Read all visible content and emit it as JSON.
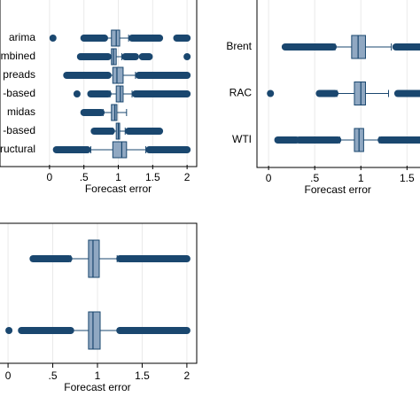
{
  "chart_data": [
    {
      "type": "box",
      "categories": [
        "arima",
        "mbined",
        "preads",
        "-based",
        "midas",
        "-based",
        "ructural"
      ],
      "color": "#1a476f",
      "box_fill": "#90a8c2",
      "grid": true,
      "xlabel": "Forecast error",
      "xlim": [
        -0.72,
        2.14
      ],
      "xticks": [
        0,
        {
          "value": 0.5,
          "label": ".5"
        },
        1,
        1.5,
        2
      ],
      "boxes": [
        {
          "whisker_low": 0.8,
          "q1": 0.9,
          "median": 0.97,
          "q3": 1.02,
          "whisker_high": 1.15,
          "outliers": [
            0.05
          ],
          "outlier_ranges": [
            [
              0.5,
              0.8
            ],
            [
              1.2,
              1.6
            ],
            [
              1.85,
              2.0
            ]
          ]
        },
        {
          "whisker_low": 0.85,
          "q1": 0.9,
          "median": 0.93,
          "q3": 0.97,
          "whisker_high": 1.05,
          "outliers": [
            2.0
          ],
          "outlier_ranges": [
            [
              0.45,
              0.85
            ],
            [
              1.1,
              1.25
            ],
            [
              1.35,
              1.45
            ]
          ]
        },
        {
          "whisker_low": 0.85,
          "q1": 0.92,
          "median": 0.98,
          "q3": 1.07,
          "whisker_high": 1.25,
          "outliers": [],
          "outlier_ranges": [
            [
              0.25,
              0.85
            ],
            [
              1.3,
              2.0
            ]
          ]
        },
        {
          "whisker_low": 0.88,
          "q1": 0.97,
          "median": 1.03,
          "q3": 1.07,
          "whisker_high": 1.2,
          "outliers": [
            0.4
          ],
          "outlier_ranges": [
            [
              0.6,
              0.85
            ],
            [
              1.25,
              2.0
            ]
          ]
        },
        {
          "whisker_low": 0.78,
          "q1": 0.9,
          "median": 0.95,
          "q3": 0.98,
          "whisker_high": 1.12,
          "outliers": [],
          "outlier_ranges": [
            [
              0.5,
              0.75
            ]
          ]
        },
        {
          "whisker_low": 0.92,
          "q1": 0.97,
          "median": 1.0,
          "q3": 1.02,
          "whisker_high": 1.1,
          "outliers": [],
          "outlier_ranges": [
            [
              0.65,
              0.9
            ],
            [
              1.15,
              1.6
            ]
          ]
        },
        {
          "whisker_low": 0.6,
          "q1": 0.92,
          "median": 1.05,
          "q3": 1.12,
          "whisker_high": 1.4,
          "outliers": [],
          "outlier_ranges": [
            [
              0.1,
              0.55
            ],
            [
              1.45,
              2.0
            ]
          ]
        }
      ]
    },
    {
      "type": "box",
      "categories": [
        "Brent",
        "RAC",
        "WTI"
      ],
      "color": "#1a476f",
      "box_fill": "#90a8c2",
      "grid": true,
      "xlabel": "Forecast error",
      "xlim": [
        -0.126,
        1.66
      ],
      "xticks": [
        0,
        {
          "value": 0.5,
          "label": ".5"
        },
        1,
        1.5
      ],
      "boxes": [
        {
          "whisker_low": 0.72,
          "q1": 0.9,
          "median": 0.97,
          "q3": 1.05,
          "whisker_high": 1.33,
          "outliers": [],
          "outlier_ranges": [
            [
              0.18,
              0.7
            ],
            [
              1.38,
              1.7
            ]
          ]
        },
        {
          "whisker_low": 0.74,
          "q1": 0.93,
          "median": 1.0,
          "q3": 1.05,
          "whisker_high": 1.3,
          "outliers": [
            0.02
          ],
          "outlier_ranges": [
            [
              0.55,
              0.72
            ],
            [
              1.4,
              2.0
            ]
          ]
        },
        {
          "whisker_low": 0.77,
          "q1": 0.93,
          "median": 0.98,
          "q3": 1.03,
          "whisker_high": 1.2,
          "outliers": [],
          "outlier_ranges": [
            [
              0.1,
              0.3
            ],
            [
              0.33,
              0.75
            ],
            [
              1.22,
              2.0
            ]
          ]
        }
      ]
    },
    {
      "type": "box",
      "categories": [
        null,
        null
      ],
      "color": "#1a476f",
      "box_fill": "#90a8c2",
      "grid": true,
      "xlabel": "Forecast error",
      "xlim": [
        -0.09,
        2.11
      ],
      "xticks": [
        0,
        {
          "value": 0.5,
          "label": ".5"
        },
        1,
        1.5,
        2
      ],
      "boxes": [
        {
          "whisker_low": 0.7,
          "q1": 0.9,
          "median": 0.95,
          "q3": 1.02,
          "whisker_high": 1.22,
          "outliers": [],
          "outlier_ranges": [
            [
              0.28,
              0.68
            ],
            [
              1.25,
              2.0
            ]
          ]
        },
        {
          "whisker_low": 0.7,
          "q1": 0.9,
          "median": 0.95,
          "q3": 1.03,
          "whisker_high": 1.25,
          "outliers": [
            0.01
          ],
          "outlier_ranges": [
            [
              0.15,
              0.7
            ],
            [
              1.25,
              2.0
            ]
          ]
        }
      ]
    }
  ]
}
